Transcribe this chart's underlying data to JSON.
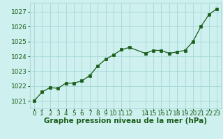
{
  "x": [
    0,
    1,
    2,
    3,
    4,
    5,
    6,
    7,
    8,
    9,
    10,
    11,
    12,
    14,
    15,
    16,
    17,
    18,
    19,
    20,
    21,
    22,
    23
  ],
  "y": [
    1021.0,
    1021.6,
    1021.9,
    1021.85,
    1022.2,
    1022.2,
    1022.35,
    1022.7,
    1023.35,
    1023.8,
    1024.1,
    1024.45,
    1024.6,
    1024.2,
    1024.4,
    1024.4,
    1024.2,
    1024.3,
    1024.4,
    1025.0,
    1026.0,
    1026.8,
    1027.2
  ],
  "ylim": [
    1020.5,
    1027.6
  ],
  "xlim": [
    -0.5,
    23.5
  ],
  "yticks": [
    1021,
    1022,
    1023,
    1024,
    1025,
    1026,
    1027
  ],
  "xticks": [
    0,
    1,
    2,
    3,
    4,
    5,
    6,
    7,
    8,
    9,
    10,
    11,
    12,
    14,
    15,
    16,
    17,
    18,
    19,
    20,
    21,
    22,
    23
  ],
  "xlabel": "Graphe pression niveau de la mer (hPa)",
  "line_color": "#1a5c1a",
  "marker_color": "#1a5c1a",
  "bg_color": "#cef0ee",
  "grid_color": "#aadada",
  "text_color": "#1a5c1a",
  "label_fontsize": 7.5,
  "tick_fontsize": 6.5
}
